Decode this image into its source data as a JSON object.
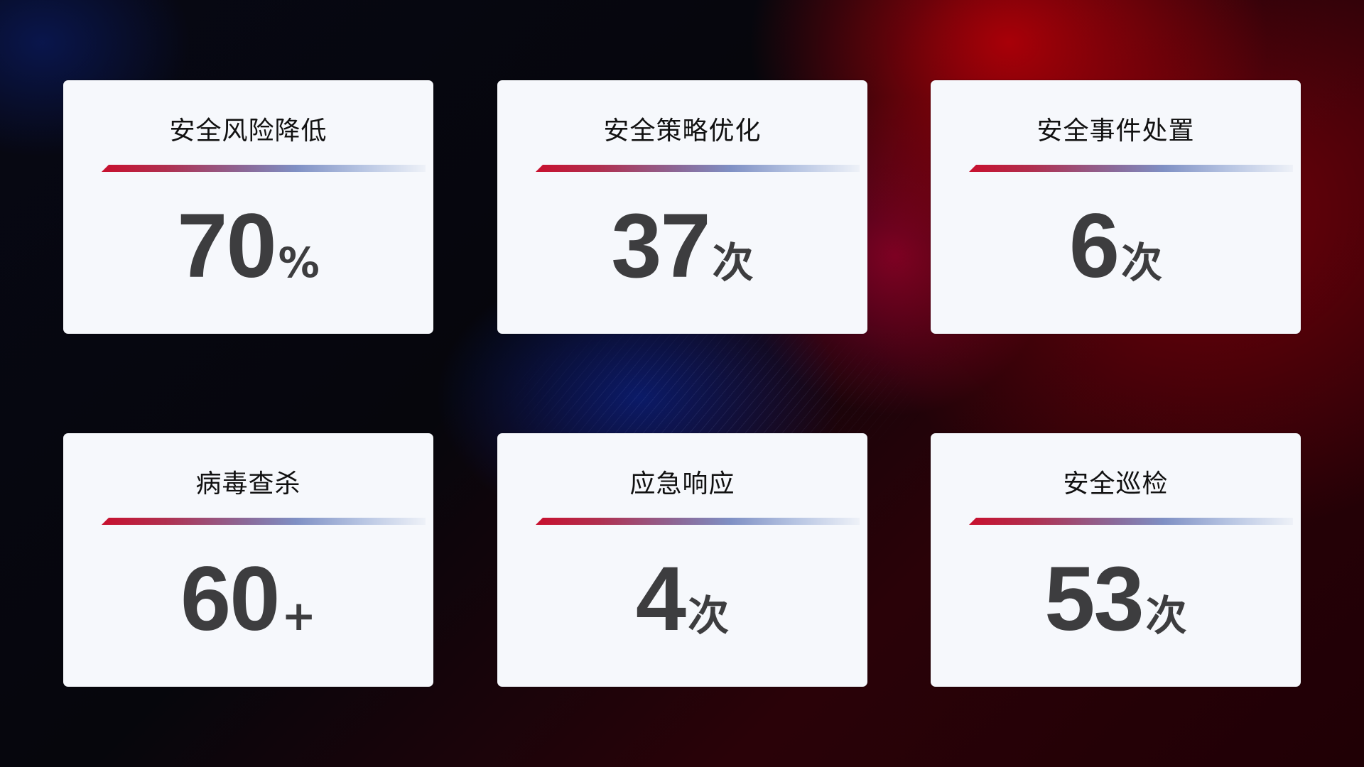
{
  "cards": [
    {
      "title": "安全风险降低",
      "value": "70",
      "unit": "%"
    },
    {
      "title": "安全策略优化",
      "value": "37",
      "unit": "次"
    },
    {
      "title": "安全事件处置",
      "value": "6",
      "unit": "次"
    },
    {
      "title": "病毒查杀",
      "value": "60",
      "unit": "+"
    },
    {
      "title": "应急响应",
      "value": "4",
      "unit": "次"
    },
    {
      "title": "安全巡检",
      "value": "53",
      "unit": "次"
    }
  ],
  "colors": {
    "accent_red": "#c8102e",
    "accent_blue": "#7f90c4",
    "card_bg": "#f6f8fc",
    "value_text": "#3d3d3f"
  }
}
